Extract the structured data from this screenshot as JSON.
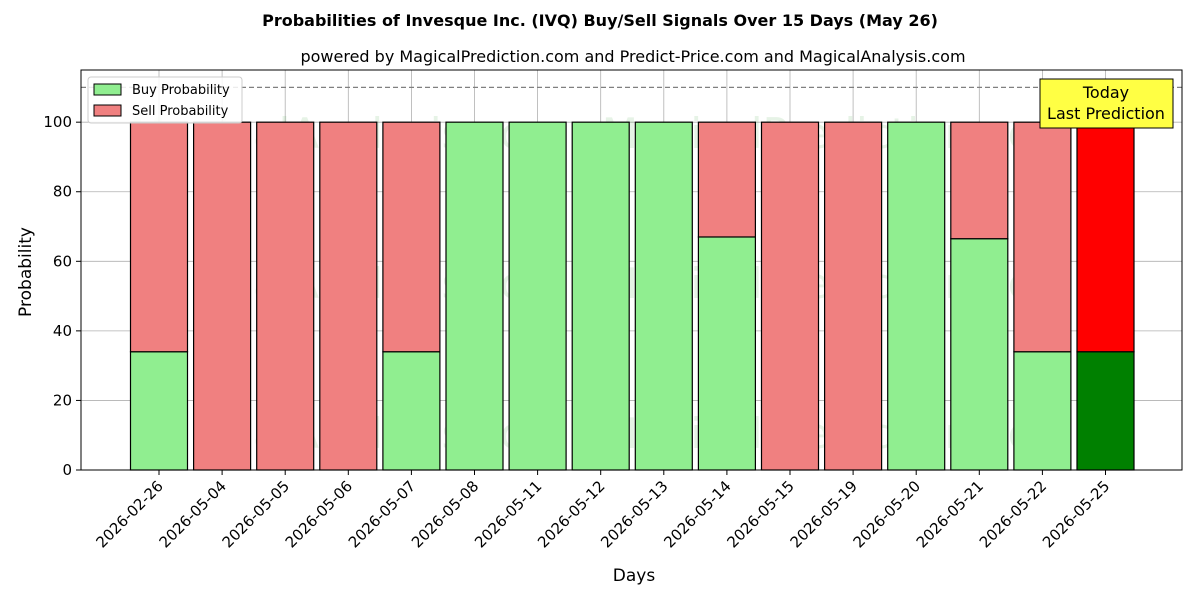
{
  "chart_data": {
    "type": "bar",
    "stacked": true,
    "title": "Probabilities of Invesque Inc. (IVQ) Buy/Sell Signals Over 15 Days (May 26)",
    "subtitle": "powered by MagicalPrediction.com and Predict-Price.com and MagicalAnalysis.com",
    "xlabel": "Days",
    "ylabel": "Probability",
    "ylim": [
      0,
      115
    ],
    "yticks": [
      0,
      20,
      40,
      60,
      80,
      100
    ],
    "reference_line": 110,
    "grid": true,
    "legend_position": "top-left",
    "categories": [
      "2026-02-26",
      "2026-05-04",
      "2026-05-05",
      "2026-05-06",
      "2026-05-07",
      "2026-05-08",
      "2026-05-11",
      "2026-05-12",
      "2026-05-13",
      "2026-05-14",
      "2026-05-15",
      "2026-05-19",
      "2026-05-20",
      "2026-05-21",
      "2026-05-22",
      "2026-05-25"
    ],
    "series": [
      {
        "name": "Buy Probability",
        "color": "#90EE90",
        "highlight_color": "#008000",
        "values": [
          34,
          0,
          0,
          0,
          34,
          100,
          100,
          100,
          100,
          67,
          0,
          0,
          100,
          66.5,
          34,
          34
        ]
      },
      {
        "name": "Sell Probability",
        "color": "#F08080",
        "highlight_color": "#FF0000",
        "values": [
          66,
          100,
          100,
          100,
          66,
          0,
          0,
          0,
          0,
          33,
          100,
          100,
          0,
          33.5,
          66,
          66
        ]
      }
    ],
    "highlight_index": 15,
    "annotation": {
      "line1": "Today",
      "line2": "Last Prediction",
      "color": "#FFFF44"
    },
    "watermarks": [
      "MagicalAnalysis.com",
      "MagicalPrediction.com"
    ]
  }
}
